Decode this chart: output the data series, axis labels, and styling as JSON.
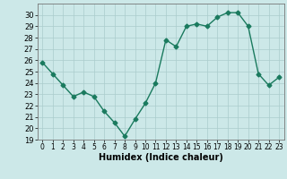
{
  "x": [
    0,
    1,
    2,
    3,
    4,
    5,
    6,
    7,
    8,
    9,
    10,
    11,
    12,
    13,
    14,
    15,
    16,
    17,
    18,
    19,
    20,
    21,
    22,
    23
  ],
  "y": [
    25.8,
    24.8,
    23.8,
    22.8,
    23.2,
    22.8,
    21.5,
    20.5,
    19.3,
    20.8,
    22.2,
    24.0,
    27.8,
    27.2,
    29.0,
    29.2,
    29.0,
    29.8,
    30.2,
    30.2,
    29.0,
    24.8,
    23.8,
    24.5
  ],
  "line_color": "#1a7a5e",
  "marker": "D",
  "marker_size": 2.5,
  "xlabel": "Humidex (Indice chaleur)",
  "xlim": [
    -0.5,
    23.5
  ],
  "ylim": [
    19,
    31
  ],
  "yticks": [
    19,
    20,
    21,
    22,
    23,
    24,
    25,
    26,
    27,
    28,
    29,
    30
  ],
  "xticks": [
    0,
    1,
    2,
    3,
    4,
    5,
    6,
    7,
    8,
    9,
    10,
    11,
    12,
    13,
    14,
    15,
    16,
    17,
    18,
    19,
    20,
    21,
    22,
    23
  ],
  "background_color": "#cce8e8",
  "grid_color": "#aacccc"
}
